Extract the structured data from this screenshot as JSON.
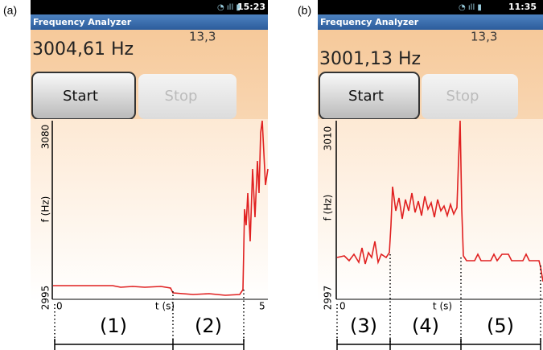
{
  "panels": [
    {
      "label": "(a)",
      "status_time": "15:23",
      "app_title": "Frequency Analyzer",
      "frequency": "3004,61 Hz",
      "level": "13,3",
      "start_button": "Start",
      "stop_button": "Stop",
      "y_top": "3080",
      "y_bottom": "2995",
      "y_axis_label": "f (Hz)",
      "x_start": "0",
      "x_axis_label": "t (s)",
      "x_end": "5",
      "segments": [
        "(1)",
        "(2)"
      ]
    },
    {
      "label": "(b)",
      "status_time": "11:35",
      "app_title": "Frequency Analyzer",
      "frequency": "3001,13 Hz",
      "level": "13,3",
      "start_button": "Start",
      "stop_button": "Stop",
      "y_top": "3010",
      "y_bottom": "2997",
      "y_axis_label": "f (Hz)",
      "x_start": "0",
      "x_axis_label": "t (s)",
      "segments": [
        "(3)",
        "(4)",
        "(5)"
      ]
    }
  ]
}
